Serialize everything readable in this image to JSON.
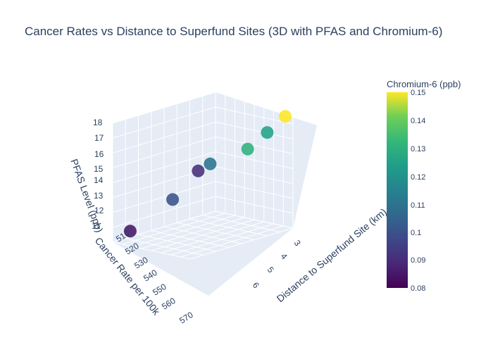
{
  "chart_data": {
    "type": "scatter",
    "title": "Cancer Rates vs Distance to Superfund Sites (3D with PFAS and Chromium-6)",
    "x_axis": {
      "label": "Distance to Superfund Site (km)",
      "ticks": [
        "3",
        "4",
        "5",
        "6"
      ]
    },
    "y_axis": {
      "label": "Cancer Rate per 100k",
      "ticks": [
        "510",
        "520",
        "530",
        "540",
        "550",
        "560",
        "570"
      ]
    },
    "z_axis": {
      "label": "PFAS Level (ppb)",
      "ticks": [
        "11",
        "12",
        "13",
        "14",
        "15",
        "16",
        "17",
        "18"
      ]
    },
    "colorbar": {
      "title": "Chromium-6 (ppb)",
      "ticks": [
        "0.15",
        "0.14",
        "0.13",
        "0.12",
        "0.11",
        "0.1",
        "0.09",
        "0.08"
      ],
      "range": [
        0.08,
        0.15
      ],
      "colorscale": "viridis"
    },
    "points": [
      {
        "x": 2.5,
        "y": 505,
        "z": 18.0,
        "color": 0.15
      },
      {
        "x": 3.0,
        "y": 512,
        "z": 17.0,
        "color": 0.125
      },
      {
        "x": 3.5,
        "y": 520,
        "z": 16.0,
        "color": 0.13
      },
      {
        "x": 4.5,
        "y": 535,
        "z": 15.2,
        "color": 0.11
      },
      {
        "x": 4.8,
        "y": 540,
        "z": 14.8,
        "color": 0.09
      },
      {
        "x": 5.5,
        "y": 550,
        "z": 13.0,
        "color": 0.1
      },
      {
        "x": 6.8,
        "y": 565,
        "z": 11.0,
        "color": 0.085
      }
    ]
  }
}
